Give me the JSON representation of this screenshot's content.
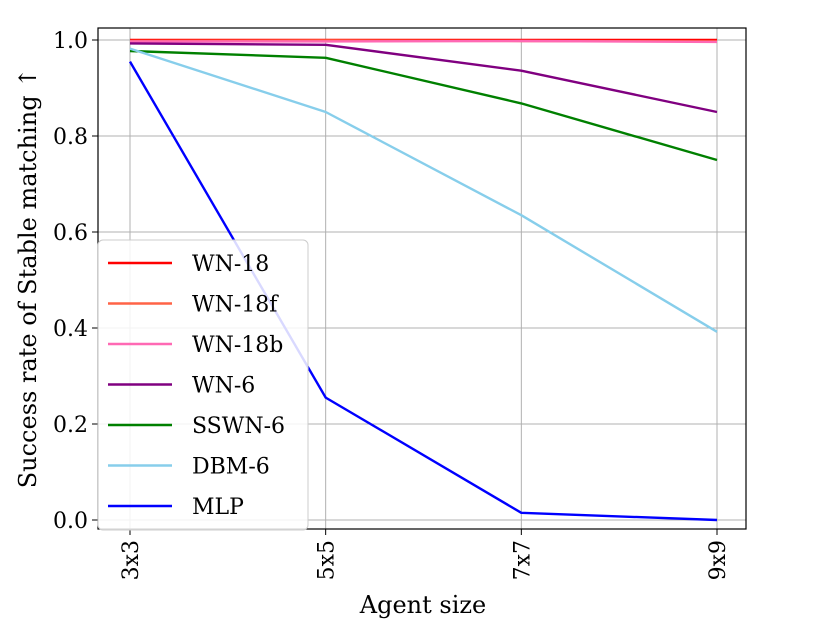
{
  "chart_data": {
    "type": "line",
    "title": "",
    "xlabel": "Agent size",
    "ylabel": "Success rate of Stable matching ↑",
    "categories": [
      "3x3",
      "5x5",
      "7x7",
      "9x9"
    ],
    "ylim": [
      0.0,
      1.0
    ],
    "yticks": [
      "0.0",
      "0.2",
      "0.4",
      "0.6",
      "0.8",
      "1.0"
    ],
    "grid": true,
    "legend_position": "lower-left",
    "series": [
      {
        "name": "WN-18",
        "color": "#ff0000",
        "values": [
          1.0,
          1.0,
          1.0,
          1.0
        ]
      },
      {
        "name": "WN-18f",
        "color": "#ff6347",
        "values": [
          0.998,
          0.999,
          0.998,
          0.997
        ]
      },
      {
        "name": "WN-18b",
        "color": "#ff69b4",
        "values": [
          0.997,
          0.997,
          0.998,
          0.996
        ]
      },
      {
        "name": "WN-6",
        "color": "#800080",
        "values": [
          0.993,
          0.99,
          0.936,
          0.85
        ]
      },
      {
        "name": "SSWN-6",
        "color": "#008000",
        "values": [
          0.977,
          0.963,
          0.868,
          0.75
        ]
      },
      {
        "name": "DBM-6",
        "color": "#87ceeb",
        "values": [
          0.982,
          0.85,
          0.635,
          0.392
        ]
      },
      {
        "name": "MLP",
        "color": "#0000ff",
        "values": [
          0.955,
          0.255,
          0.015,
          0.0
        ]
      }
    ]
  }
}
